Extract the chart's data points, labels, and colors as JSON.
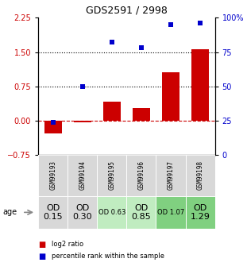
{
  "title": "GDS2591 / 2998",
  "samples": [
    "GSM99193",
    "GSM99194",
    "GSM99195",
    "GSM99196",
    "GSM99197",
    "GSM99198"
  ],
  "log2_ratio": [
    -0.28,
    -0.04,
    0.42,
    0.28,
    1.05,
    1.57
  ],
  "percentile_rank": [
    24,
    50,
    82,
    78,
    95,
    96
  ],
  "bar_color": "#cc0000",
  "dot_color": "#0000cc",
  "left_ylim": [
    -0.75,
    2.25
  ],
  "right_ylim": [
    0,
    100
  ],
  "left_yticks": [
    -0.75,
    0,
    0.75,
    1.5,
    2.25
  ],
  "right_yticks": [
    0,
    25,
    50,
    75,
    100
  ],
  "right_yticklabels": [
    "0",
    "25",
    "50",
    "75",
    "100%"
  ],
  "hline_values": [
    0.0,
    0.75,
    1.5
  ],
  "hline_styles": [
    "--",
    ":",
    ":"
  ],
  "hline_colors": [
    "#cc0000",
    "#000000",
    "#000000"
  ],
  "age_labels": [
    "OD\n0.15",
    "OD\n0.30",
    "OD 0.63",
    "OD\n0.85",
    "OD 1.07",
    "OD\n1.29"
  ],
  "age_bg_colors": [
    "#d8d8d8",
    "#d8d8d8",
    "#c0ecc0",
    "#c0ecc0",
    "#80d080",
    "#80d080"
  ],
  "age_font_large": 8,
  "age_font_small": 6,
  "age_is_large": [
    true,
    true,
    false,
    true,
    false,
    true
  ],
  "sample_bg_color": "#d8d8d8",
  "legend_red": "log2 ratio",
  "legend_blue": "percentile rank within the sample",
  "left_tick_color": "#cc0000",
  "right_tick_color": "#0000cc",
  "sample_fontsize": 5.5,
  "title_fontsize": 9
}
